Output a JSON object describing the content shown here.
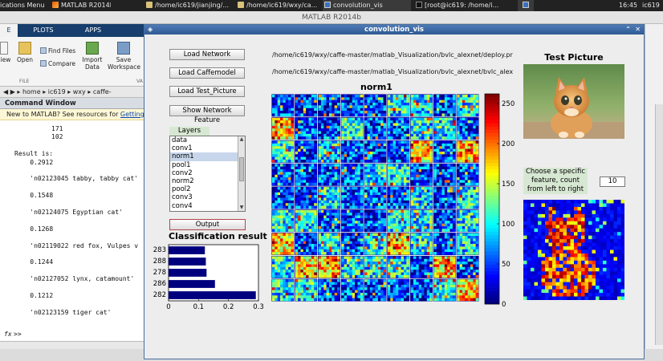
{
  "taskbar": {
    "items": [
      {
        "label": "ications Menu",
        "icon": "none"
      },
      {
        "label": "MATLAB R2014b",
        "icon": "matlab-icon"
      },
      {
        "label": "/home/ic619/jianjing/...",
        "icon": "folder-icon"
      },
      {
        "label": "/home/ic619/wxy/ca...",
        "icon": "folder-icon"
      },
      {
        "label": "convolution_vis",
        "icon": "figure-icon"
      },
      {
        "label": "[root@ic619: /home/i...",
        "icon": "terminal-icon"
      }
    ],
    "clock": "16:45",
    "user": "ic619"
  },
  "matlab": {
    "window_title": "MATLAB R2014b",
    "tabs": [
      "E",
      "PLOTS",
      "APPS"
    ],
    "ribbon": {
      "new_label": "iew",
      "open_label": "Open",
      "find_files_label": "Find Files",
      "compare_label": "Compare",
      "import_label": "Import\nData",
      "save_label": "Save\nWorkspace",
      "group_file": "FILE",
      "group_va": "VA"
    },
    "path": [
      "home",
      "ic619",
      "wxy",
      "caffe-"
    ],
    "command_window": {
      "title": "Command Window",
      "banner_text": "New to MATLAB? See resources for ",
      "banner_link": "Getting",
      "lines": [
        "171",
        "102",
        "",
        "Result is:",
        "    0.2912",
        "",
        "    'n02123045 tabby, tabby cat'",
        "",
        "    0.1548",
        "",
        "    'n02124075 Egyptian cat'",
        "",
        "    0.1268",
        "",
        "    'n02119022 red fox, Vulpes v",
        "",
        "    0.1244",
        "",
        "    'n02127052 lynx, catamount'",
        "",
        "    0.1212",
        "",
        "    'n02123159 tiger cat'"
      ],
      "prompt": ">>",
      "fx": "fx"
    }
  },
  "figure": {
    "title": "convolution_vis",
    "buttons": {
      "load_network": "Load Network",
      "load_caffemodel": "Load Caffemodel",
      "load_test_picture": "Load Test_Picture",
      "show_network_feature": "Show Network Feature",
      "output": "Output"
    },
    "paths": {
      "deploy": "/home/ic619/wxy/caffe-master/matlab_Visualization/bvlc_alexnet/deploy.pr",
      "caffemodel": "/home/ic619/wxy/caffe-master/matlab_Visualization/bvlc_alexnet/bvlc_alex"
    },
    "layers_label": "Layers",
    "layers": [
      "data",
      "conv1",
      "norm1",
      "pool1",
      "conv2",
      "norm2",
      "pool2",
      "conv3",
      "conv4"
    ],
    "selected_layer": "norm1",
    "feature_map_title": "norm1",
    "colorbar_ticks": [
      "0",
      "50",
      "100",
      "150",
      "200",
      "250"
    ],
    "test_picture_title": "Test Picture",
    "feature_note": "Choose a specific feature, count from left to right",
    "feature_index": "10",
    "test_picture_icon": "kitten-photo",
    "feature_image_icon": "cat-feature-map"
  },
  "chart_data": {
    "type": "bar",
    "orientation": "horizontal",
    "title": "Classification result",
    "categories": [
      "283",
      "288",
      "278",
      "286",
      "282"
    ],
    "values": [
      0.1212,
      0.1244,
      0.1268,
      0.1548,
      0.2912
    ],
    "xlim": [
      0,
      0.3
    ],
    "xticks": [
      "0",
      "0.1",
      "0.2",
      "0.3"
    ],
    "bar_color": "#00007f",
    "grid": false
  }
}
